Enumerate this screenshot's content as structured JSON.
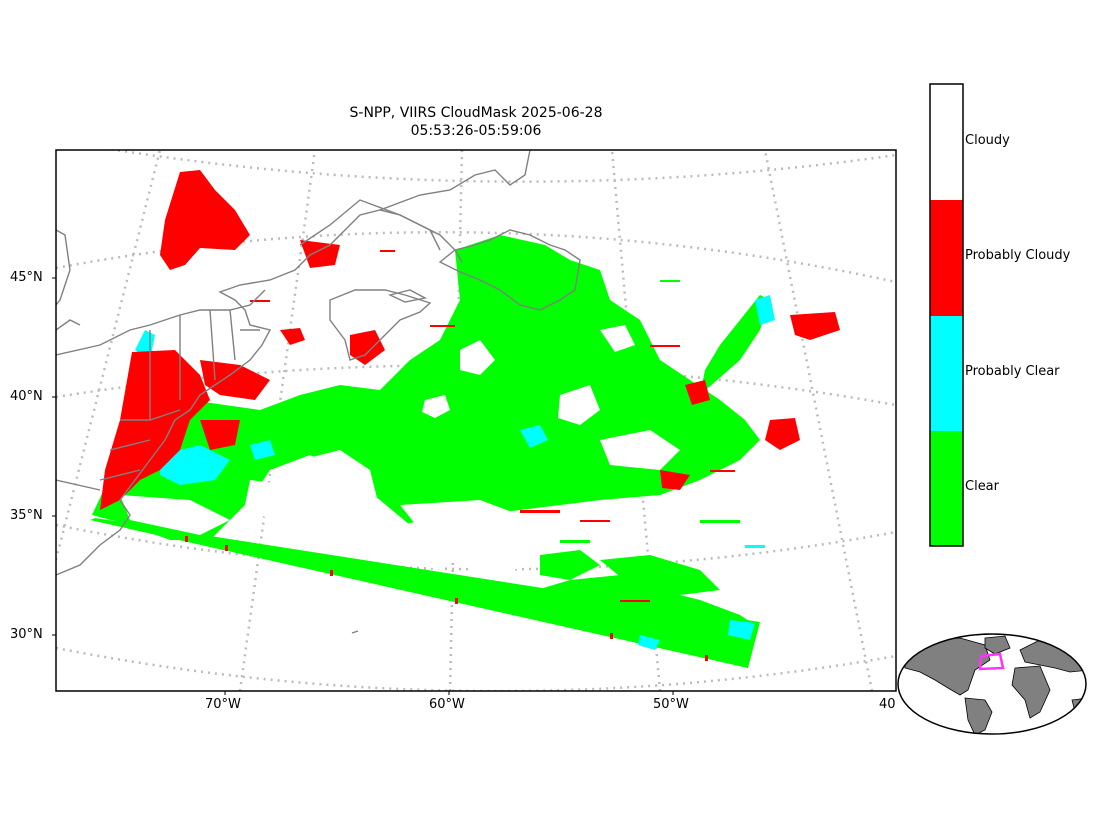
{
  "title": {
    "line1": "S-NPP, VIIRS CloudMask 2025-06-28",
    "line2": "05:53:26-05:59:06"
  },
  "latitude_labels": [
    "45°N",
    "40°N",
    "35°N",
    "30°N"
  ],
  "longitude_labels": [
    "70°W",
    "60°W",
    "50°W",
    "40"
  ],
  "legend": {
    "categories": [
      {
        "label": "Cloudy",
        "color": "#ffffff"
      },
      {
        "label": "Probably Cloudy",
        "color": "#ff0000"
      },
      {
        "label": "Probably Clear",
        "color": "#00ffff"
      },
      {
        "label": "Clear",
        "color": "#00ff00"
      }
    ]
  },
  "colors": {
    "clear": "#00ff00",
    "probably_clear": "#00ffff",
    "probably_cloudy": "#ff0000",
    "coastline": "#808080",
    "gridline": "#bbbbbb",
    "inset_land": "#808080",
    "inset_box": "#ff33ff"
  }
}
